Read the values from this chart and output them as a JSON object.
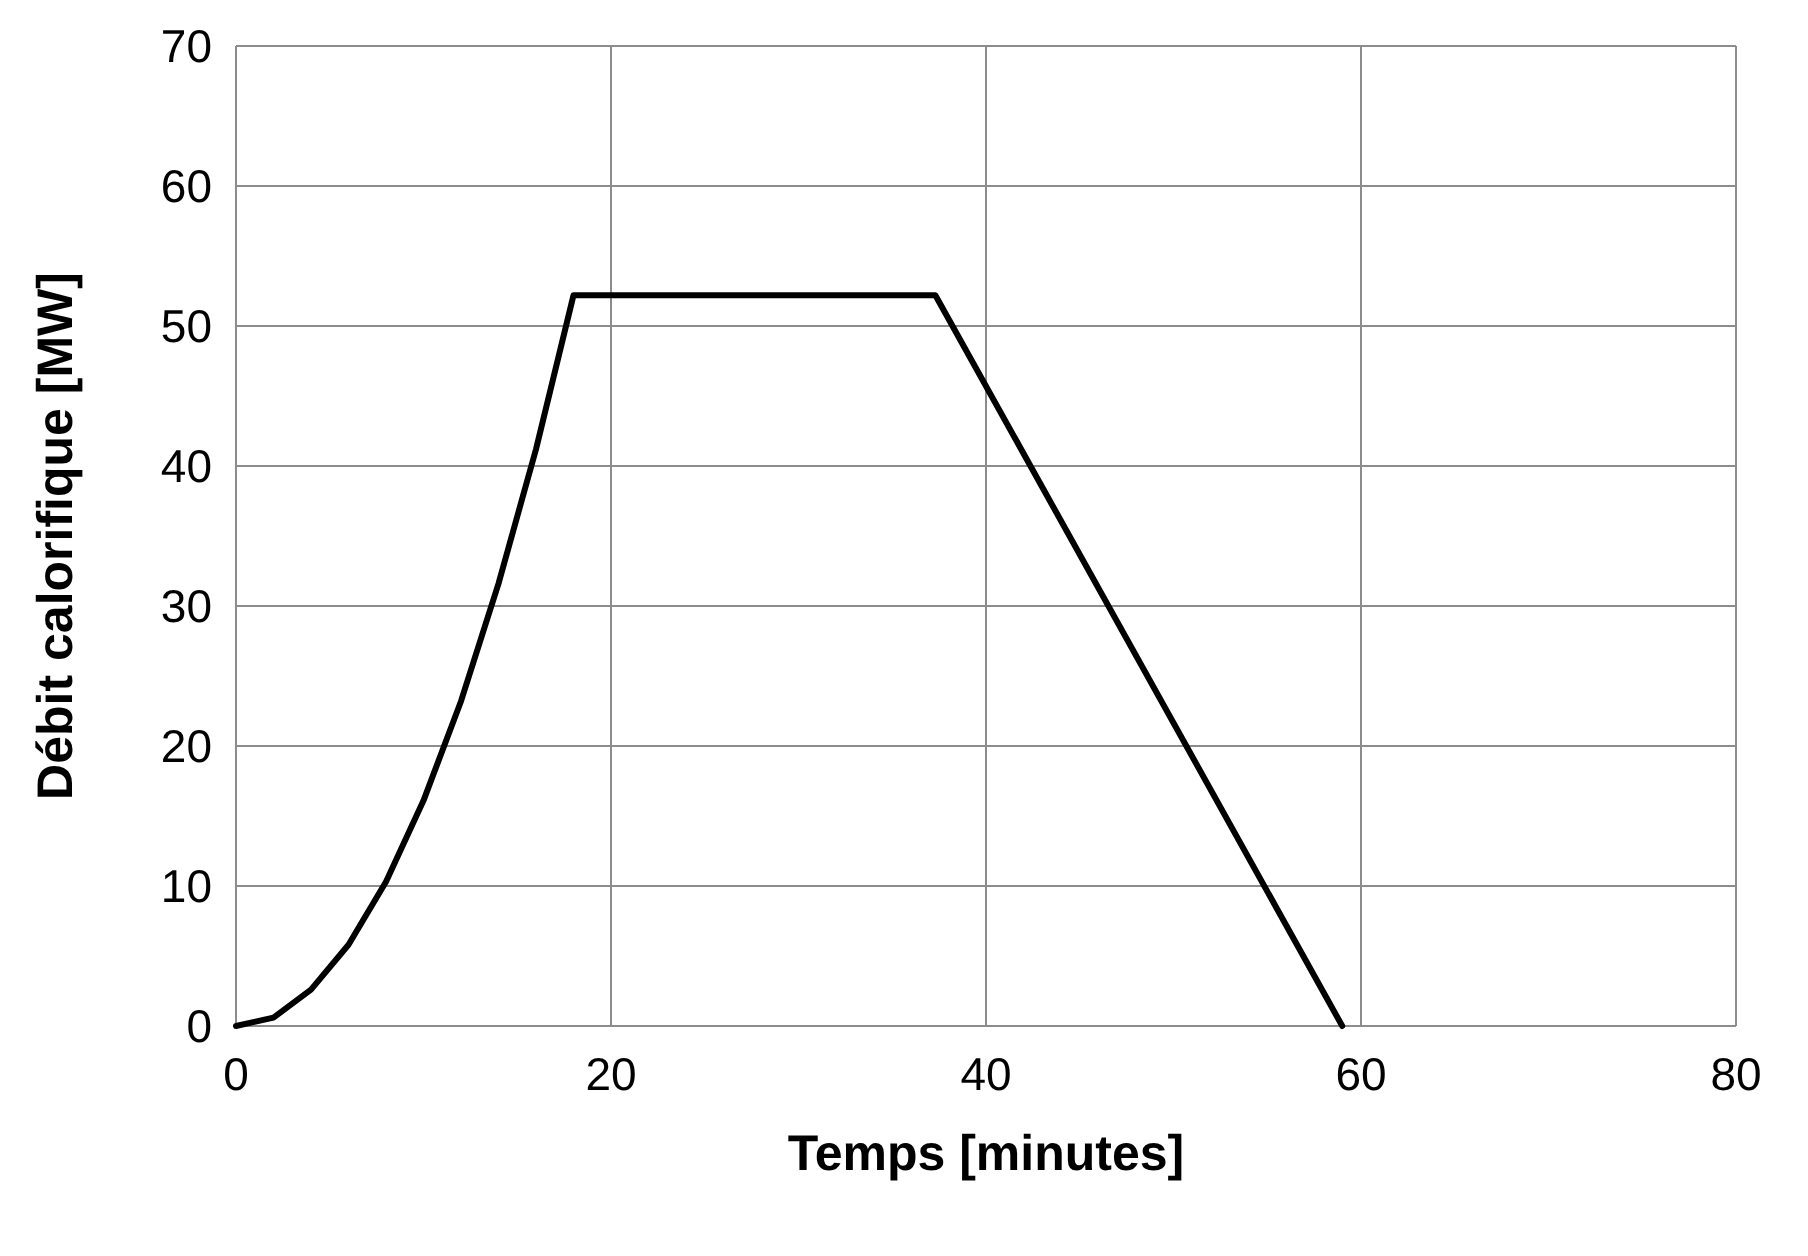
{
  "chart_data": {
    "type": "line",
    "xlabel": "Temps [minutes]",
    "ylabel": "Débit calorifique [MW]",
    "series": [
      {
        "color": "#000000",
        "x": [
          0,
          2,
          4,
          6,
          8,
          10,
          12,
          14,
          16,
          18,
          37.3,
          59
        ],
        "values": [
          0,
          0.6,
          2.6,
          5.8,
          10.3,
          16.1,
          23.2,
          31.6,
          41.2,
          52.2,
          52.2,
          0
        ]
      }
    ],
    "xlim": [
      0,
      80
    ],
    "xticks": [
      0,
      20,
      40,
      60,
      80
    ],
    "ylim": [
      0,
      70
    ],
    "yticks": [
      0,
      10,
      20,
      30,
      40,
      50,
      60,
      70
    ],
    "grid": true,
    "marker": "none",
    "line_style": "solid"
  }
}
